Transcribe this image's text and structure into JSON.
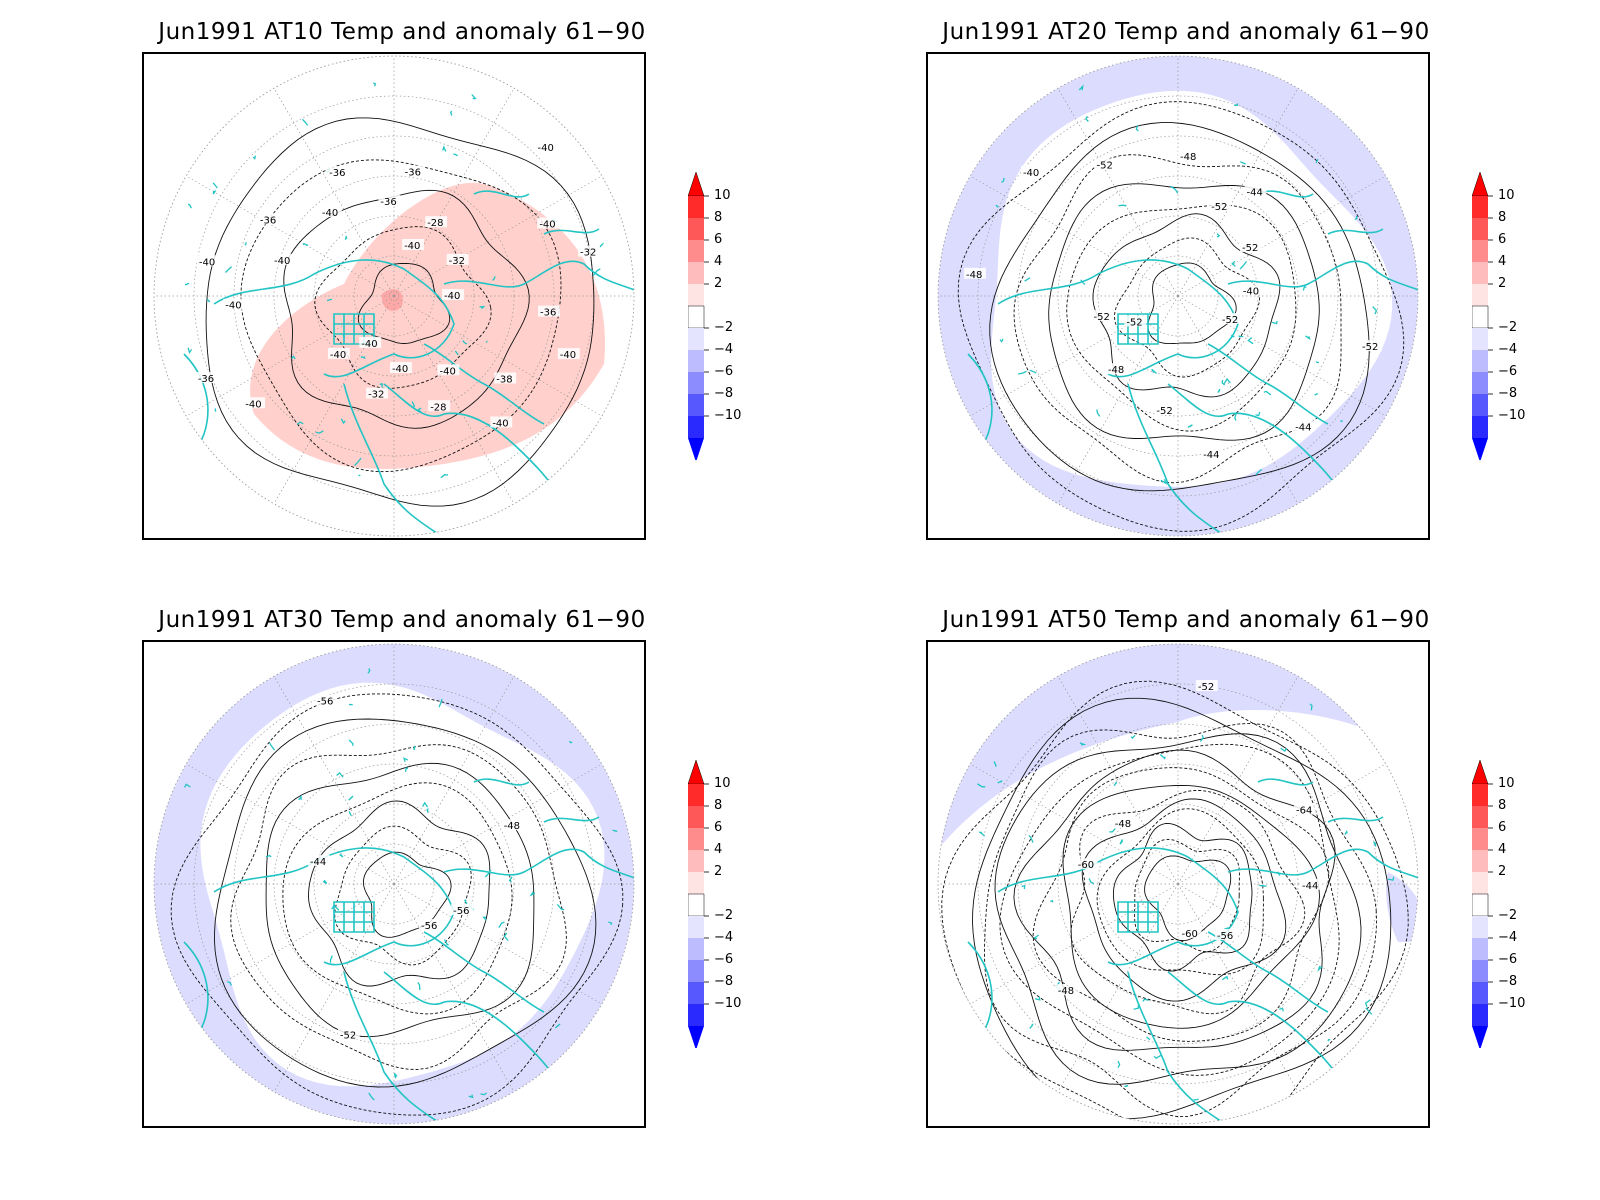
{
  "panels": [
    {
      "id": "at10",
      "title": "Jun1991 AT10 Temp and anomaly 61−90",
      "shading": "warm",
      "contour_labels": [
        "-40",
        "-40",
        "-36",
        "-40",
        "-40",
        "-32",
        "-32",
        "-36",
        "-40",
        "-36",
        "-28",
        "-28",
        "-36",
        "-32",
        "-40",
        "-36",
        "-38",
        "-40",
        "-40",
        "-40",
        "-40",
        "-36",
        "-40",
        "-40",
        "-40",
        "-40",
        "-40"
      ]
    },
    {
      "id": "at20",
      "title": "Jun1991 AT20 Temp and anomaly 61−90",
      "shading": "cool-ring",
      "contour_labels": [
        "-52",
        "-52",
        "-44",
        "-44",
        "-40",
        "-40",
        "-48",
        "-48",
        "-44",
        "-48",
        "-52",
        "-52",
        "-52",
        "-52",
        "-52",
        "-52"
      ]
    },
    {
      "id": "at30",
      "title": "Jun1991 AT30 Temp and anomaly 61−90",
      "shading": "cool-ring",
      "contour_labels": [
        "-56",
        "-44",
        "-48",
        "-52",
        "-56",
        "-56"
      ]
    },
    {
      "id": "at50",
      "title": "Jun1991 AT50 Temp and anomaly 61−90",
      "shading": "cool-outer",
      "contour_labels": [
        "-60",
        "-48",
        "-44",
        "-48",
        "-52",
        "-56",
        "-60",
        "-64"
      ]
    }
  ],
  "colorbar": {
    "labels": [
      "10",
      "8",
      "6",
      "4",
      "2",
      "−2",
      "−4",
      "−6",
      "−8",
      "−10"
    ],
    "colors": [
      "#ff2a2a",
      "#ff5858",
      "#ff8c8c",
      "#ffbcbc",
      "#ffe4e4",
      "#e4e4ff",
      "#bcbcff",
      "#8c8cff",
      "#5858ff",
      "#2a2aff"
    ],
    "top_color": "#ff0000",
    "bottom_color": "#0000ff",
    "neutral_color": "#ffffff"
  },
  "colors": {
    "coastline": "#22c4c4",
    "warm_anomaly": "#ffd0cc",
    "warm_anomaly_strong": "#ffa8a8",
    "cool_anomaly": "#dcdcff",
    "contour": "#111111",
    "grid": "#999999"
  }
}
